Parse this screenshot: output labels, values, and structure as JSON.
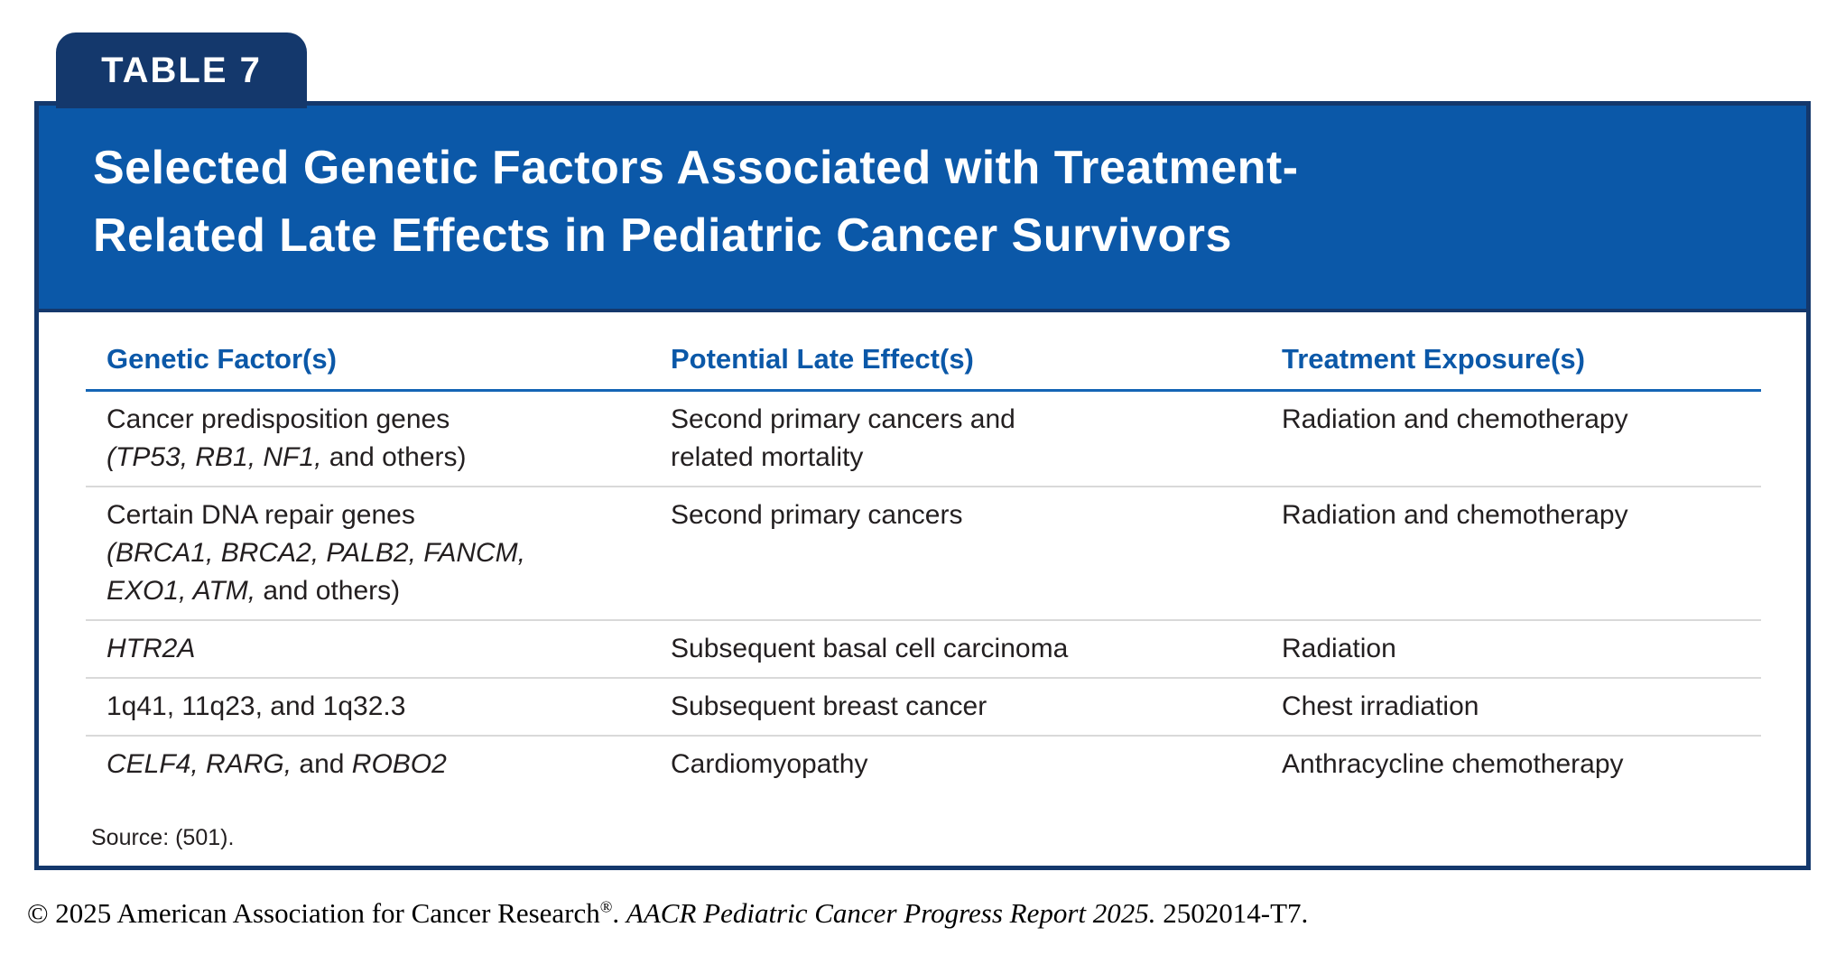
{
  "tab_label": "TABLE 7",
  "title_lines": [
    "Selected Genetic Factors Associated with Treatment-",
    "Related Late Effects in Pediatric Cancer Survivors"
  ],
  "colors": {
    "tab_navy": "#14386c",
    "band_blue": "#0b58a8",
    "header_text_blue": "#0b58a8",
    "header_rule_blue": "#1465b5",
    "row_separator_gray": "#d9d9d9",
    "body_text": "#231f20"
  },
  "table": {
    "headers": [
      "Genetic Factor(s)",
      "Potential Late Effect(s)",
      "Treatment Exposure(s)"
    ],
    "rows": [
      {
        "cells": [
          {
            "lines": [
              [
                {
                  "t": "Cancer predisposition genes"
                }
              ],
              [
                {
                  "t": "(TP53, RB1, NF1,",
                  "i": true
                },
                {
                  "t": " and others)"
                }
              ]
            ]
          },
          {
            "lines": [
              [
                {
                  "t": "Second primary cancers and"
                }
              ],
              [
                {
                  "t": "related mortality"
                }
              ]
            ]
          },
          {
            "lines": [
              [
                {
                  "t": "Radiation and chemotherapy"
                }
              ]
            ]
          }
        ]
      },
      {
        "cells": [
          {
            "lines": [
              [
                {
                  "t": "Certain DNA repair genes"
                }
              ],
              [
                {
                  "t": "(BRCA1, BRCA2, PALB2, FANCM,",
                  "i": true
                }
              ],
              [
                {
                  "t": "EXO1, ATM,",
                  "i": true
                },
                {
                  "t": " and others)"
                }
              ]
            ]
          },
          {
            "lines": [
              [
                {
                  "t": "Second primary cancers"
                }
              ]
            ]
          },
          {
            "lines": [
              [
                {
                  "t": "Radiation and chemotherapy"
                }
              ]
            ]
          }
        ]
      },
      {
        "cells": [
          {
            "lines": [
              [
                {
                  "t": "HTR2A",
                  "i": true
                }
              ]
            ]
          },
          {
            "lines": [
              [
                {
                  "t": "Subsequent basal cell carcinoma"
                }
              ]
            ]
          },
          {
            "lines": [
              [
                {
                  "t": "Radiation"
                }
              ]
            ]
          }
        ]
      },
      {
        "cells": [
          {
            "lines": [
              [
                {
                  "t": "1q41, 11q23, and 1q32.3"
                }
              ]
            ]
          },
          {
            "lines": [
              [
                {
                  "t": "Subsequent breast cancer"
                }
              ]
            ]
          },
          {
            "lines": [
              [
                {
                  "t": "Chest irradiation"
                }
              ]
            ]
          }
        ]
      },
      {
        "cells": [
          {
            "lines": [
              [
                {
                  "t": "CELF4, RARG,",
                  "i": true
                },
                {
                  "t": " and "
                },
                {
                  "t": "ROBO2",
                  "i": true
                }
              ]
            ]
          },
          {
            "lines": [
              [
                {
                  "t": "Cardiomyopathy"
                }
              ]
            ]
          },
          {
            "lines": [
              [
                {
                  "t": "Anthracycline chemotherapy"
                }
              ]
            ]
          }
        ]
      }
    ]
  },
  "source": "Source: (501).",
  "footer": {
    "parts": [
      {
        "t": "© 2025 American Association for Cancer Research"
      },
      {
        "t": "®",
        "sup": true
      },
      {
        "t": ". "
      },
      {
        "t": "AACR Pediatric Cancer Progress Report 2025.",
        "i": true
      },
      {
        "t": " 2502014-T7."
      }
    ]
  }
}
